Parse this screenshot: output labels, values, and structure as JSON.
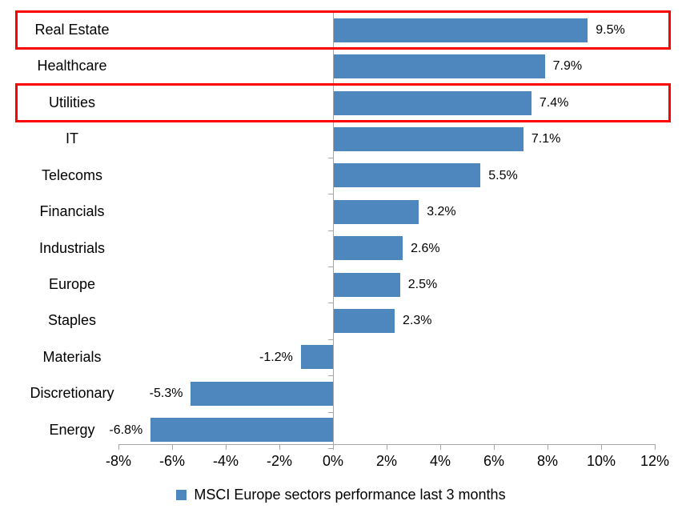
{
  "chart_data": {
    "type": "bar",
    "orientation": "horizontal",
    "categories": [
      "Real Estate",
      "Healthcare",
      "Utilities",
      "IT",
      "Telecoms",
      "Financials",
      "Industrials",
      "Europe",
      "Staples",
      "Materials",
      "Discretionary",
      "Energy"
    ],
    "values": [
      9.5,
      7.9,
      7.4,
      7.1,
      5.5,
      3.2,
      2.6,
      2.5,
      2.3,
      -1.2,
      -5.3,
      -6.8
    ],
    "data_labels": [
      "9.5%",
      "7.9%",
      "7.4%",
      "7.1%",
      "5.5%",
      "3.2%",
      "2.6%",
      "2.5%",
      "2.3%",
      "-1.2%",
      "-5.3%",
      "-6.8%"
    ],
    "x_ticks": [
      "-8%",
      "-6%",
      "-4%",
      "-2%",
      "0%",
      "2%",
      "4%",
      "6%",
      "8%",
      "10%",
      "12%"
    ],
    "xlim": [
      -8,
      12
    ],
    "x_tick_step": 2,
    "legend": "MSCI Europe sectors performance last 3 months",
    "legend_position": "bottom",
    "grid": "off",
    "bar_color": "#4E86BE",
    "axis_color": "#A6A6A6",
    "highlight_color": "#FF0000",
    "highlighted_categories": [
      "Real Estate",
      "Utilities"
    ]
  }
}
